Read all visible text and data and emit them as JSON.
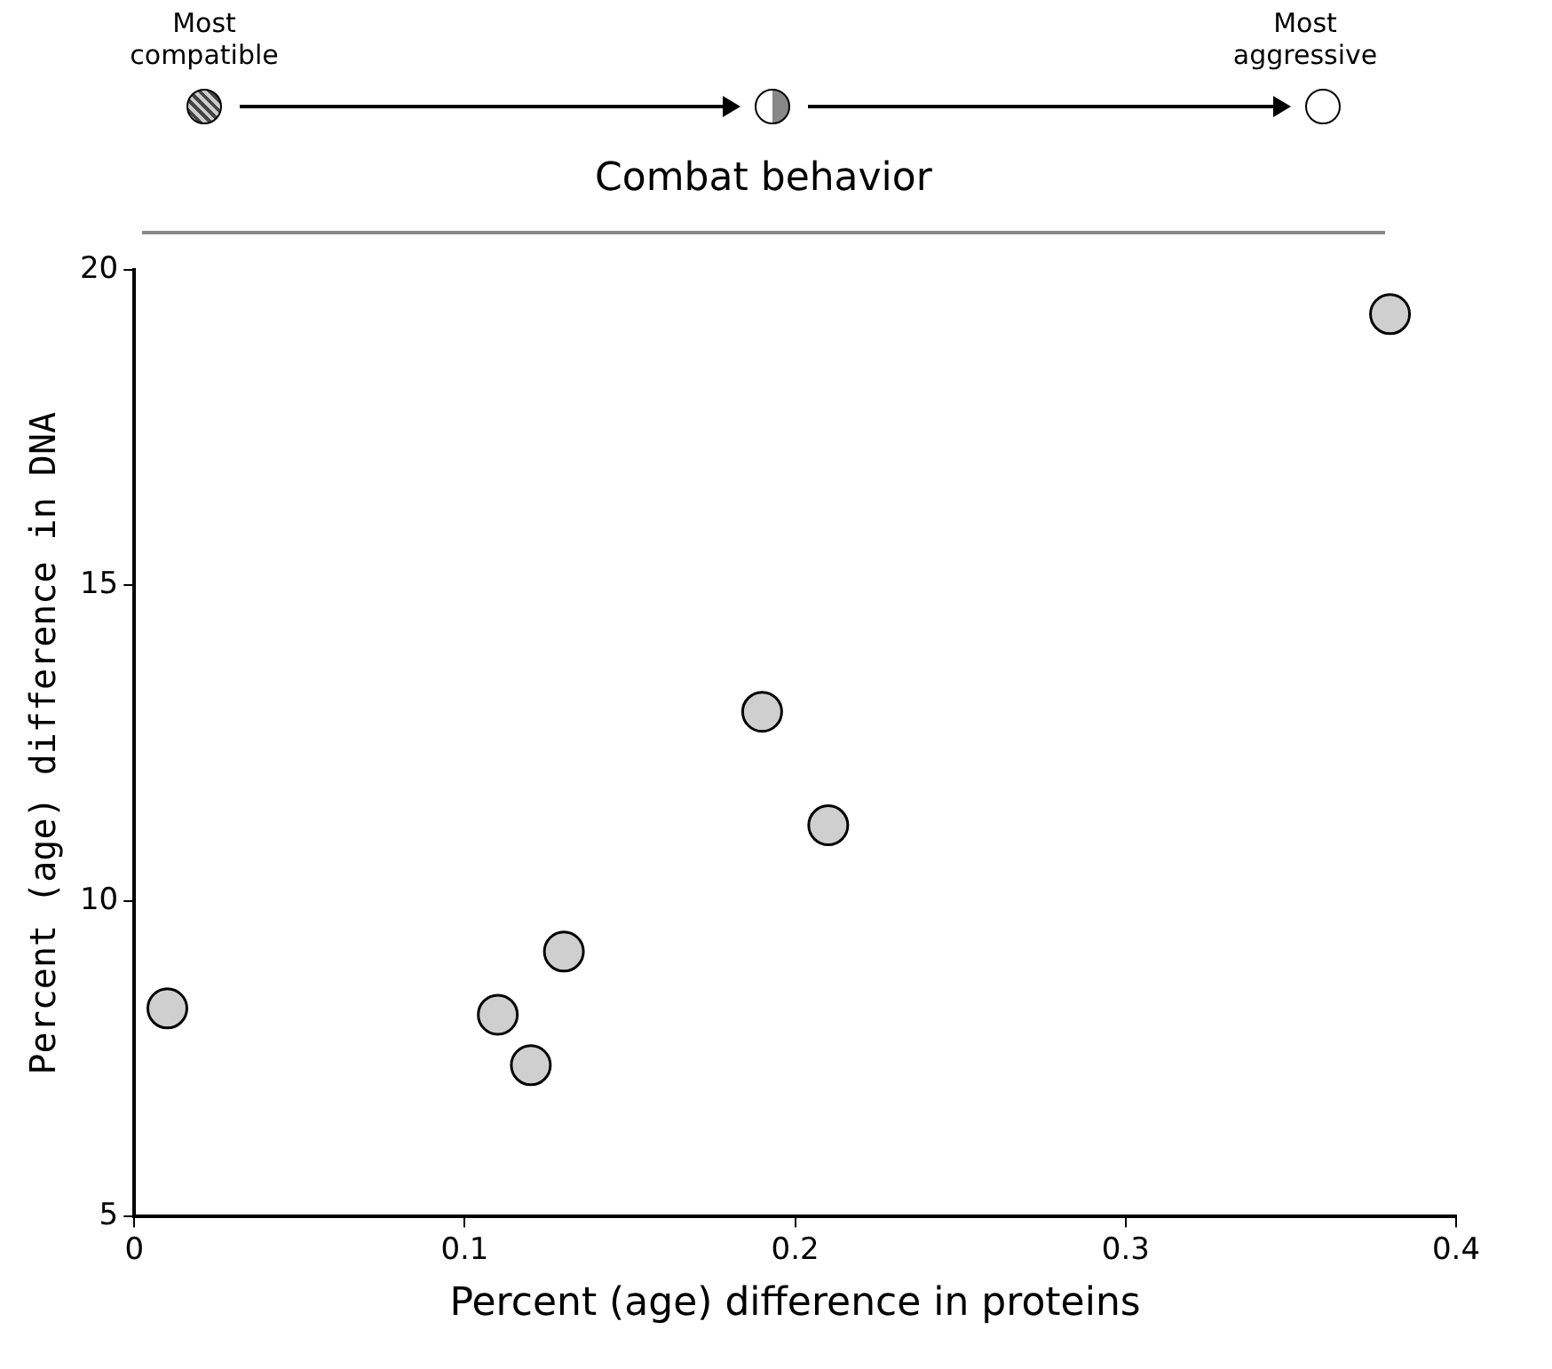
{
  "chart_data": {
    "type": "scatter",
    "xlabel": "Percent (age) difference in proteins",
    "ylabel": "Percent (age) difference in DNA",
    "legend_title": "Combat behavior",
    "annotations": [
      "Most compatible",
      "Most aggressive"
    ],
    "x": [
      0.01,
      0.11,
      0.12,
      0.13,
      0.19,
      0.21,
      0.38
    ],
    "values": [
      8.3,
      8.2,
      7.4,
      9.2,
      13.0,
      11.2,
      19.3
    ],
    "color": "#000000",
    "marker": "circle",
    "xlim": [
      0,
      0.4
    ],
    "xticks": [
      0,
      0.1,
      0.2,
      0.3,
      0.4
    ],
    "ylim": [
      5,
      20
    ],
    "yticks": [
      5,
      10,
      15,
      20
    ],
    "grid": false,
    "legend": false
  }
}
